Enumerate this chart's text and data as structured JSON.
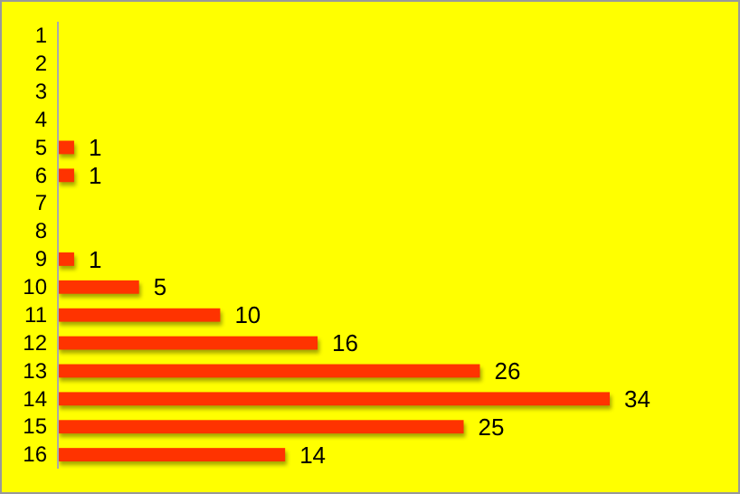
{
  "chart_data": {
    "type": "bar",
    "orientation": "horizontal",
    "categories": [
      "1",
      "2",
      "3",
      "4",
      "5",
      "6",
      "7",
      "8",
      "9",
      "10",
      "11",
      "12",
      "13",
      "14",
      "15",
      "16"
    ],
    "values": [
      null,
      null,
      null,
      null,
      1,
      1,
      null,
      null,
      1,
      5,
      10,
      16,
      26,
      34,
      25,
      14
    ],
    "color": "#ff3300",
    "data_labels": true
  }
}
